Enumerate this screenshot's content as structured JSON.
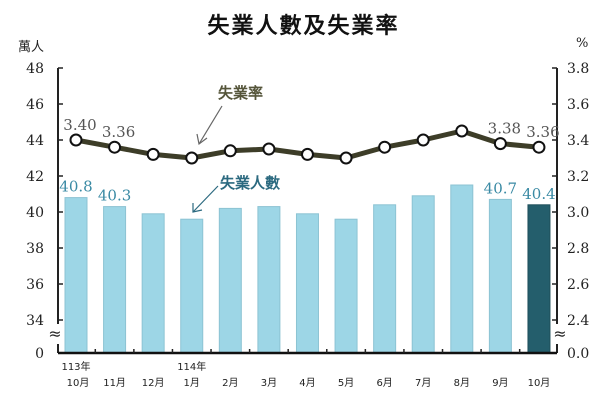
{
  "title": "失業人數及失業率",
  "left_unit": "萬人",
  "right_unit": "%",
  "annotations": {
    "rate": "失業率",
    "count": "失業人數"
  },
  "colors": {
    "bar": "#9dd6e6",
    "bar_highlight": "#245e6c",
    "line": "#3d3d28",
    "bar_label": "#3a8aa4",
    "rate_annotation": "#55553a",
    "count_annotation": "#2c6a80"
  },
  "chart_data": {
    "type": "bar+line",
    "title": "失業人數及失業率",
    "categories": [
      "113年10月",
      "11月",
      "12月",
      "114年1月",
      "2月",
      "3月",
      "4月",
      "5月",
      "6月",
      "7月",
      "8月",
      "9月",
      "10月"
    ],
    "x_labels": [
      [
        "113年",
        "10月"
      ],
      [
        "",
        "11月"
      ],
      [
        "",
        "12月"
      ],
      [
        "114年",
        "1月"
      ],
      [
        "",
        "2月"
      ],
      [
        "",
        "3月"
      ],
      [
        "",
        "4月"
      ],
      [
        "",
        "5月"
      ],
      [
        "",
        "6月"
      ],
      [
        "",
        "7月"
      ],
      [
        "",
        "8月"
      ],
      [
        "",
        "9月"
      ],
      [
        "",
        "10月"
      ]
    ],
    "series": [
      {
        "name": "失業人數",
        "type": "bar",
        "axis": "left",
        "unit": "萬人",
        "values": [
          40.8,
          40.3,
          39.9,
          39.6,
          40.2,
          40.3,
          39.9,
          39.6,
          40.4,
          40.9,
          41.5,
          40.7,
          40.4
        ],
        "labeled": {
          "0": "40.8",
          "1": "40.3",
          "11": "40.7",
          "12": "40.4"
        }
      },
      {
        "name": "失業率",
        "type": "line",
        "axis": "right",
        "unit": "%",
        "values": [
          3.4,
          3.36,
          3.32,
          3.3,
          3.34,
          3.35,
          3.32,
          3.3,
          3.36,
          3.4,
          3.45,
          3.38,
          3.36
        ],
        "labeled": {
          "0": "3.40",
          "1": "3.36",
          "11": "3.38",
          "12": "3.36"
        }
      }
    ],
    "left_axis": {
      "label": "萬人",
      "ticks": [
        "0",
        "34",
        "36",
        "38",
        "40",
        "42",
        "44",
        "46",
        "48"
      ],
      "range": [
        34,
        48
      ],
      "break": true
    },
    "right_axis": {
      "label": "%",
      "ticks": [
        "0.0",
        "2.4",
        "2.6",
        "2.8",
        "3.0",
        "3.2",
        "3.4",
        "3.6",
        "3.8"
      ],
      "range": [
        2.4,
        3.8
      ],
      "break": true
    },
    "grid": false,
    "legend": "inline annotations with arrows"
  }
}
